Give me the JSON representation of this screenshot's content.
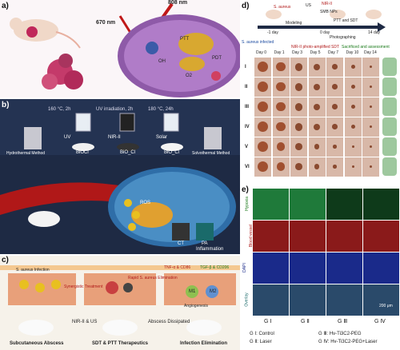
{
  "panels": {
    "a": "a)",
    "b": "b)",
    "c": "c)",
    "d": "d)",
    "e": "e)"
  },
  "a": {
    "nir1": "808 nm",
    "nir2": "670 nm",
    "ptt": "PTT",
    "pdt": "PDT",
    "oh": "OH",
    "o2": "O2"
  },
  "b": {
    "step1": "160 °C, 2h",
    "step2": "UV irradiation, 2h",
    "step3": "180 °C, 24h",
    "hydro": "Hydrothermal Method",
    "solvo": "Solvothermal Method",
    "uv": "UV",
    "nir2": "NIR-II",
    "solar": "Solar",
    "cat1": "BiOCl",
    "cat2": "BiO_Cl",
    "cat3": "BiO_Cl",
    "ros": "ROS",
    "inflammation": "Inflammation",
    "ct": "CT",
    "pa": "PA"
  },
  "c": {
    "infection": "S. aureus Infection",
    "synergistic": "Synergistic Treatment",
    "rapid": "Rapid S. aureus Elimination",
    "tnf1": "TNF-α & CD86",
    "tgf": "TGF-β & CD206",
    "m1": "M1",
    "m2": "M2",
    "angio": "Angiogenesis",
    "abscess": "Subcutaneous Abscess",
    "nir_us": "NIR-II & US",
    "therapeutics": "SDT & PTT Therapeutics",
    "dissipated": "Abscess Dissipated",
    "elim": "Infection Elimination"
  },
  "d": {
    "aureus": "S. aureus",
    "smb": "SMB NPs",
    "us": "US",
    "nir": "NIR-II",
    "t1": "-1 day",
    "t2": "0 day",
    "t3": "14 day",
    "modeling": "Modeling",
    "pttsdt": "PTT and SDT",
    "photo": "Photographing",
    "infected": "S. aureus infected",
    "nirsdt": "NIR-II photo-amplified SDT",
    "sacrificed": "Sacrificed and assessment",
    "days": [
      "Day 0",
      "Day 1",
      "Day 3",
      "Day 5",
      "Day 7",
      "Day 10",
      "Day 14"
    ],
    "rows": [
      "I",
      "II",
      "III",
      "IV",
      "V",
      "VI"
    ]
  },
  "e": {
    "rows": [
      "Hypoxia",
      "Blood vessel",
      "DAPI",
      "Overlay"
    ],
    "cols": [
      "G Ⅰ",
      "G Ⅱ",
      "G Ⅲ",
      "G Ⅳ"
    ],
    "scale": "200 μm",
    "legend": [
      "G Ⅰ: Control",
      "G Ⅱ: Laser",
      "G Ⅲ: Hv-Ti3C2-PEG",
      "G Ⅳ: Hv-Ti3C2-PEG+Laser"
    ]
  },
  "colors": {
    "bdark": "#1e2a44",
    "hypoxia": "#1f7a3a",
    "vessel": "#8a1a1a",
    "dapi": "#1a2a8a"
  }
}
